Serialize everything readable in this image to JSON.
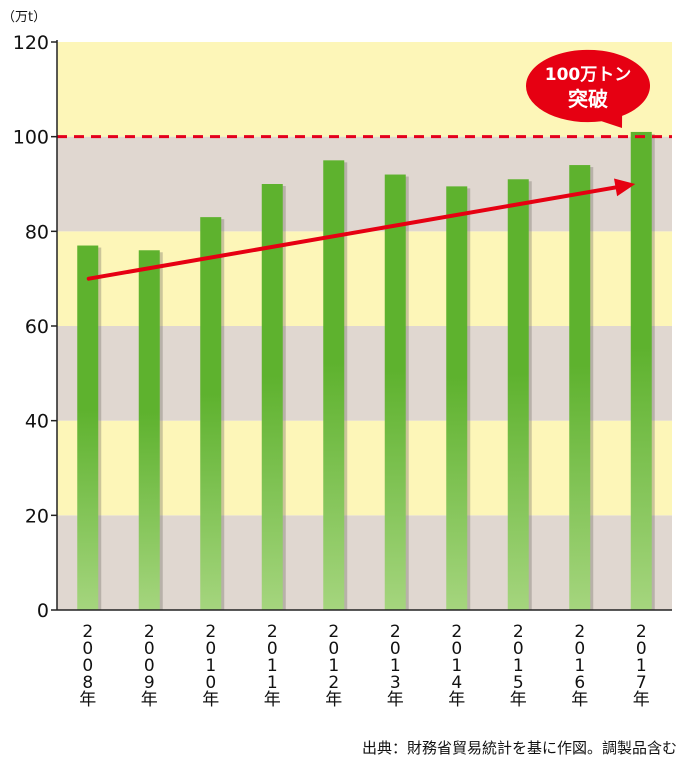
{
  "chart_data": {
    "type": "bar",
    "unit_label": "（万t）",
    "categories": [
      "2008年",
      "2009年",
      "2010年",
      "2011年",
      "2012年",
      "2013年",
      "2014年",
      "2015年",
      "2016年",
      "2017年"
    ],
    "category_chars": [
      [
        "2",
        "0",
        "0",
        "8",
        "年"
      ],
      [
        "2",
        "0",
        "0",
        "9",
        "年"
      ],
      [
        "2",
        "0",
        "1",
        "0",
        "年"
      ],
      [
        "2",
        "0",
        "1",
        "1",
        "年"
      ],
      [
        "2",
        "0",
        "1",
        "2",
        "年"
      ],
      [
        "2",
        "0",
        "1",
        "3",
        "年"
      ],
      [
        "2",
        "0",
        "1",
        "4",
        "年"
      ],
      [
        "2",
        "0",
        "1",
        "5",
        "年"
      ],
      [
        "2",
        "0",
        "1",
        "6",
        "年"
      ],
      [
        "2",
        "0",
        "1",
        "7",
        "年"
      ]
    ],
    "values": [
      77,
      76,
      83,
      90,
      95,
      92,
      89.5,
      91,
      94,
      101
    ],
    "ylim": [
      0,
      120
    ],
    "yticks": [
      0,
      20,
      40,
      60,
      80,
      100,
      120
    ],
    "ytick_labels": [
      "0",
      "20",
      "40",
      "60",
      "80",
      "100",
      "120"
    ],
    "threshold": 100,
    "trend_from": {
      "x": "2008年",
      "y": 70
    },
    "trend_to": {
      "x": "2017年",
      "y": 90
    },
    "callout": {
      "line1": "100万トン",
      "line2": "突破"
    },
    "source": "出典：財務省貿易統計を基に作図。調製品含む",
    "colors": {
      "band_light": "#fdf6b8",
      "band_dark": "#e0d7d0",
      "bar_top": "#5eb22e",
      "bar_bottom": "#a5d57e",
      "threshold_line": "#e4001c",
      "trend_arrow": "#e60012",
      "callout_bg": "#e60012"
    }
  }
}
